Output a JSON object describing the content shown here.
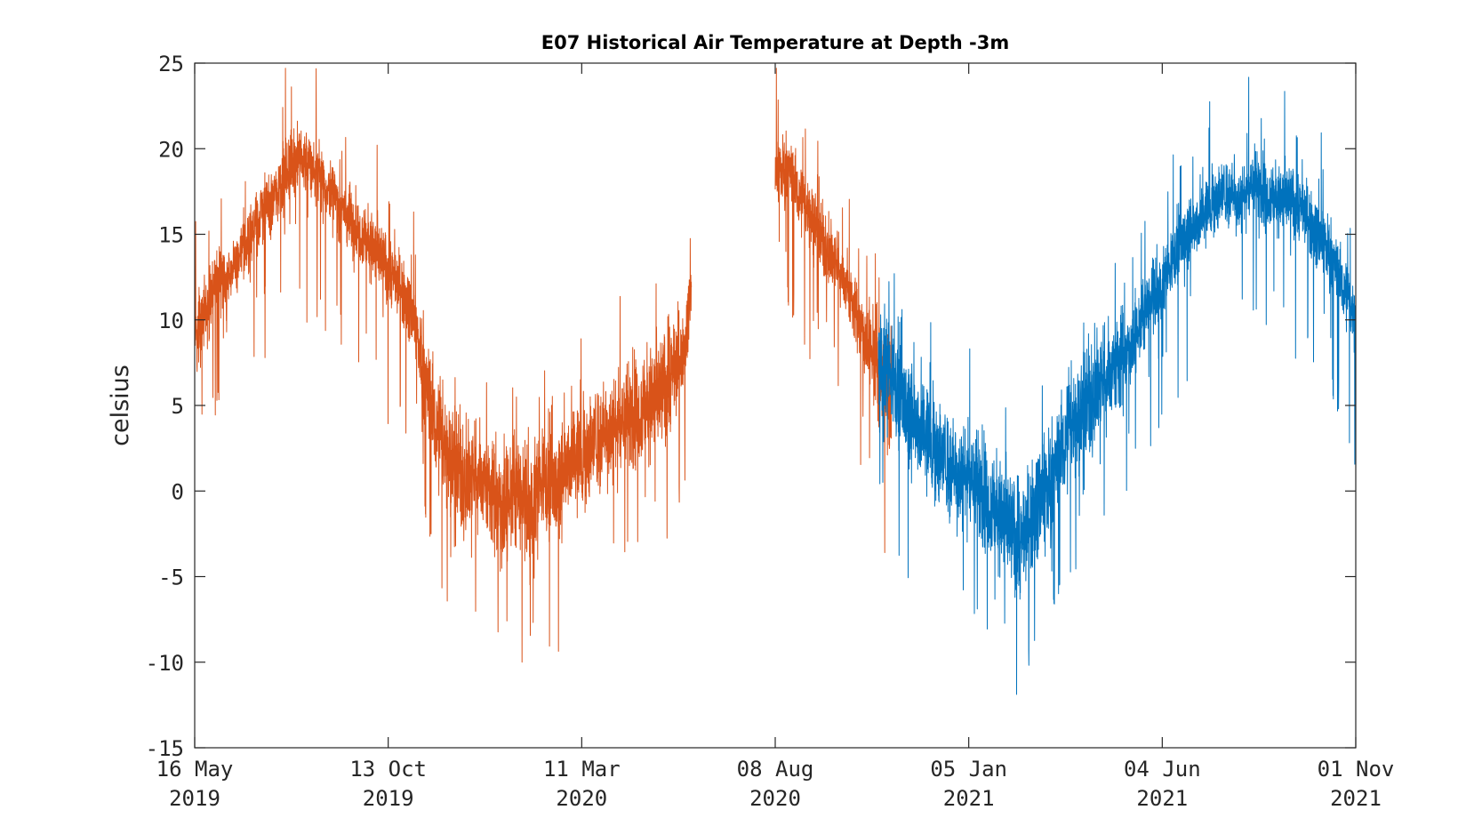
{
  "chart_data": {
    "type": "line",
    "title": "E07 Historical Air Temperature at Depth -3m",
    "xlabel": "",
    "ylabel": "celsius",
    "xlim": [
      "2019-05-16",
      "2021-11-01"
    ],
    "ylim": [
      -15,
      25
    ],
    "grid": false,
    "legend": "none",
    "yticks": [
      25,
      20,
      15,
      10,
      5,
      0,
      -5,
      -10,
      -15
    ],
    "ytick_labels": [
      "25",
      "20",
      "15",
      "10",
      "5",
      "0",
      "-5",
      "-10",
      "-15"
    ],
    "xticks": [
      {
        "date": "2019-05-16",
        "line1": "16 May",
        "line2": "2019"
      },
      {
        "date": "2019-10-13",
        "line1": "13 Oct",
        "line2": "2019"
      },
      {
        "date": "2020-03-11",
        "line1": "11 Mar",
        "line2": "2020"
      },
      {
        "date": "2020-08-08",
        "line1": "08 Aug",
        "line2": "2020"
      },
      {
        "date": "2021-01-05",
        "line1": "05 Jan",
        "line2": "2021"
      },
      {
        "date": "2021-06-04",
        "line1": "04 Jun",
        "line2": "2021"
      },
      {
        "date": "2021-11-01",
        "line1": "01 Nov",
        "line2": "2021"
      }
    ],
    "series": [
      {
        "color": "#d95319",
        "segments": [
          {
            "x": [
              "2019-05-16",
              "2019-05-26",
              "2019-06-05",
              "2019-06-15",
              "2019-06-25",
              "2019-07-05",
              "2019-07-15",
              "2019-07-25",
              "2019-08-04",
              "2019-08-14",
              "2019-08-24",
              "2019-09-03",
              "2019-09-13",
              "2019-09-23",
              "2019-10-03",
              "2019-10-13",
              "2019-10-23",
              "2019-11-02",
              "2019-11-12",
              "2019-11-22",
              "2019-12-02",
              "2019-12-12",
              "2019-12-22",
              "2020-01-01",
              "2020-01-11",
              "2020-01-21",
              "2020-01-31",
              "2020-02-10",
              "2020-02-20",
              "2020-03-01",
              "2020-03-11",
              "2020-03-21",
              "2020-03-31",
              "2020-04-10",
              "2020-04-20",
              "2020-04-30",
              "2020-05-10",
              "2020-05-20",
              "2020-05-30",
              "2020-06-04"
            ],
            "y": [
              9,
              11,
              12.5,
              13,
              14.5,
              16,
              17,
              18.5,
              19.5,
              19,
              18,
              17,
              16,
              15,
              14,
              13,
              12,
              10,
              6,
              3,
              2,
              0.5,
              1,
              0,
              -1,
              0,
              -1,
              1,
              0,
              2,
              2,
              3,
              3.5,
              4,
              4.5,
              5,
              5.5,
              7,
              8.5,
              12
            ]
          },
          {
            "x": [
              "2020-08-08",
              "2020-08-18",
              "2020-08-28",
              "2020-09-07",
              "2020-09-17",
              "2020-09-27",
              "2020-10-07",
              "2020-10-17",
              "2020-10-27",
              "2020-11-06"
            ],
            "y": [
              18.5,
              19,
              17,
              16,
              14,
              13,
              11,
              9,
              7,
              5
            ]
          }
        ]
      },
      {
        "color": "#0072bd",
        "segments": [
          {
            "x": [
              "2020-10-27",
              "2020-11-06",
              "2020-11-16",
              "2020-11-26",
              "2020-12-06",
              "2020-12-16",
              "2020-12-26",
              "2021-01-05",
              "2021-01-15",
              "2021-01-25",
              "2021-02-04",
              "2021-02-14",
              "2021-02-24",
              "2021-03-06",
              "2021-03-16",
              "2021-03-26",
              "2021-04-05",
              "2021-04-15",
              "2021-04-25",
              "2021-05-05",
              "2021-05-15",
              "2021-05-25",
              "2021-06-04",
              "2021-06-14",
              "2021-06-24",
              "2021-07-04",
              "2021-07-14",
              "2021-07-24",
              "2021-08-03",
              "2021-08-13",
              "2021-08-23",
              "2021-09-02",
              "2021-09-12",
              "2021-09-22",
              "2021-10-02",
              "2021-10-12",
              "2021-10-22",
              "2021-11-01"
            ],
            "y": [
              8,
              7,
              5,
              4,
              3,
              2,
              1,
              1,
              0,
              -1,
              -2,
              -3,
              -1,
              0,
              2,
              4,
              5,
              6,
              7,
              8,
              9,
              11,
              12,
              14,
              15,
              16,
              17,
              17.5,
              17,
              18,
              17.5,
              17,
              17,
              16.5,
              15,
              14,
              12,
              10
            ]
          }
        ]
      }
    ]
  }
}
